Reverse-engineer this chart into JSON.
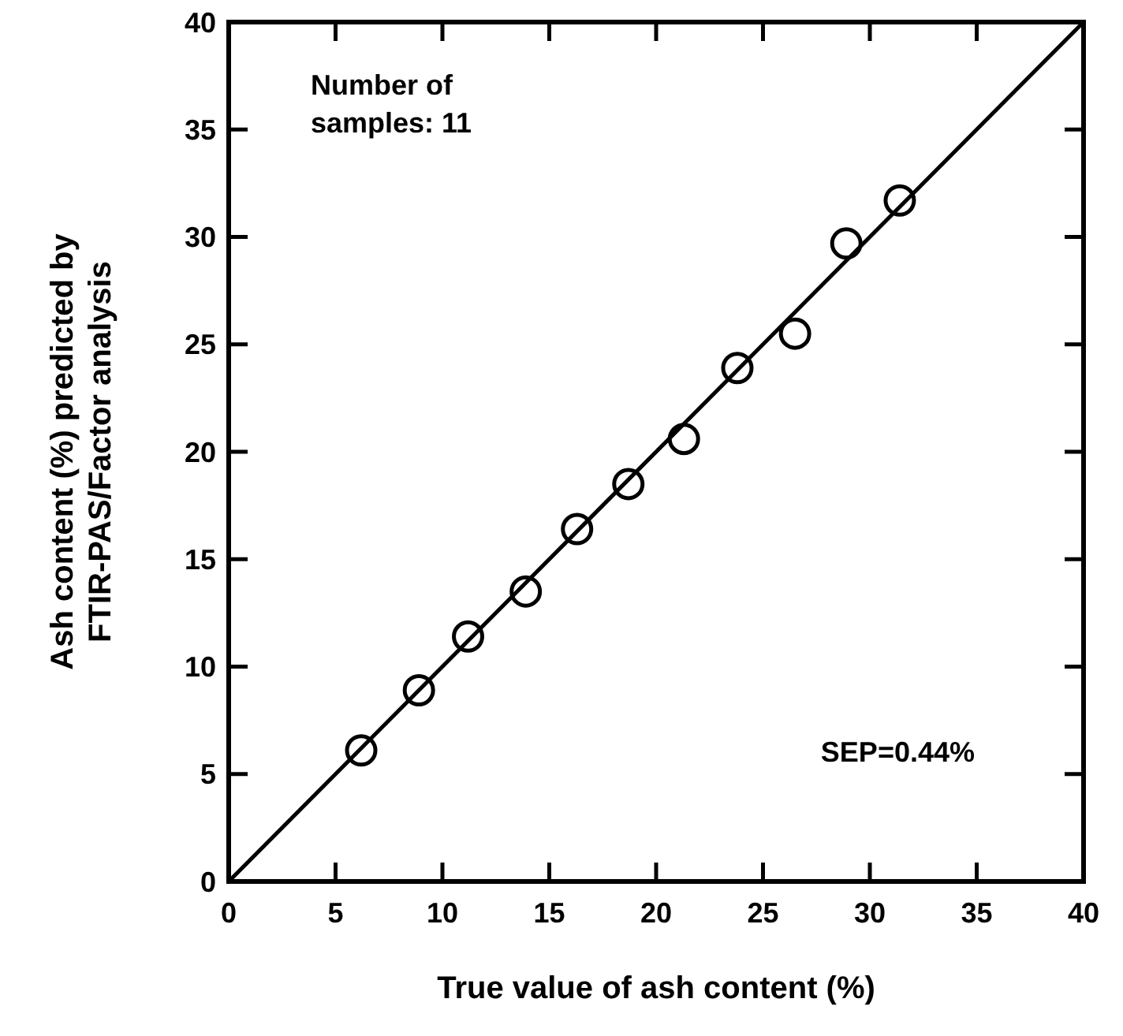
{
  "chart_data": {
    "type": "scatter",
    "xlabel": "True value of ash content (%)",
    "ylabel": "Ash content (%) predicted by\nFTIR-PAS/Factor analysis",
    "xlim": [
      0,
      40
    ],
    "ylim": [
      0,
      40
    ],
    "xticks": [
      0,
      5,
      10,
      15,
      20,
      25,
      30,
      35,
      40
    ],
    "yticks": [
      0,
      5,
      10,
      15,
      20,
      25,
      30,
      35,
      40
    ],
    "grid": false,
    "marker": "circle",
    "series": [
      {
        "color": "#000000",
        "x": [
          6.2,
          8.9,
          11.2,
          13.9,
          16.3,
          18.7,
          21.3,
          23.8,
          26.5,
          28.9,
          31.4
        ],
        "values": [
          6.1,
          8.9,
          11.4,
          13.5,
          16.4,
          18.5,
          20.6,
          23.9,
          25.5,
          29.7,
          31.7
        ]
      },
      {
        "type": "line",
        "color": "#000000",
        "marker": "none",
        "line_style": "solid",
        "x": [
          0,
          40
        ],
        "values": [
          0,
          40
        ]
      }
    ],
    "annotations": [
      "Number of\nsamples: 11",
      "SEP=0.44%"
    ]
  }
}
